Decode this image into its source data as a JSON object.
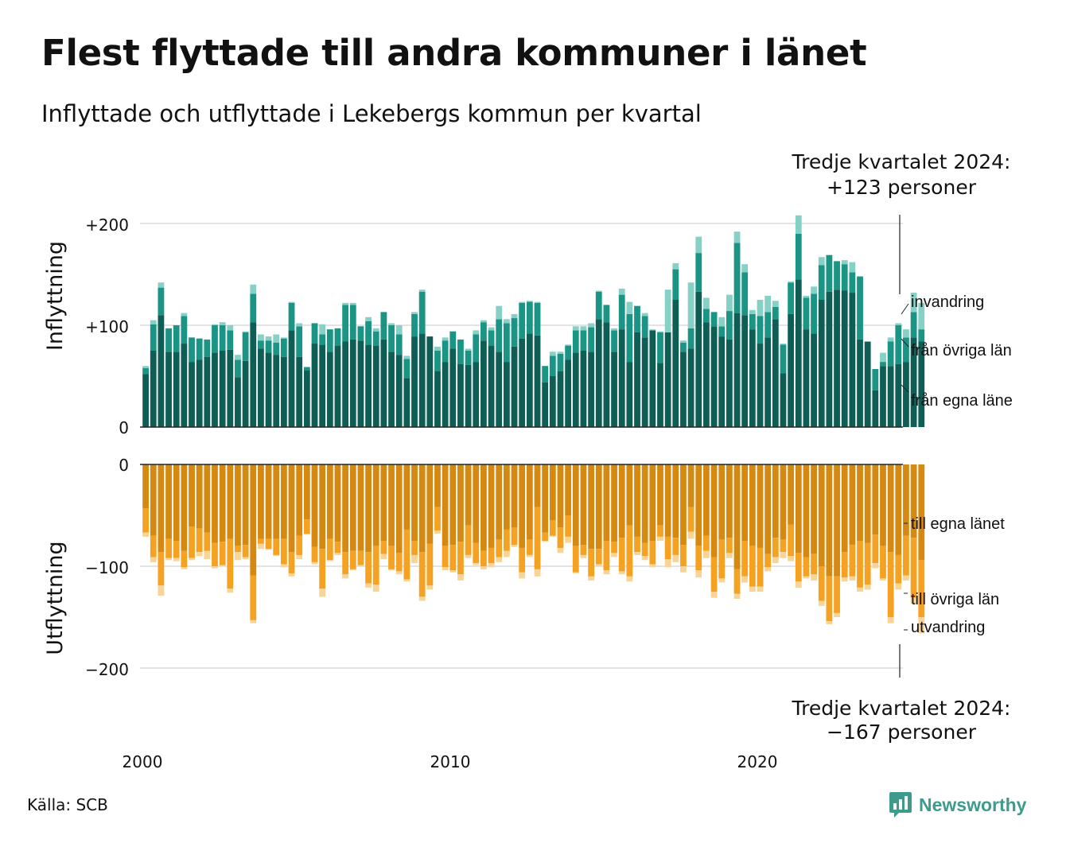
{
  "title": "Flest flyttade till andra kommuner i länet",
  "subtitle": "Inflyttade och utflyttade i Lekebergs kommun per kvartal",
  "source": "Källa: SCB",
  "brand": "Newsworthy",
  "colors": {
    "in_own": "#0f5e55",
    "in_other": "#1a9485",
    "in_immig": "#86d0c6",
    "out_own": "#d68910",
    "out_other": "#f5a121",
    "out_emig": "#f8d497",
    "grid": "#e3e3e3"
  },
  "chart_data": [
    {
      "type": "bar",
      "stacked": true,
      "panel": "top",
      "ylabel": "Inflyttning",
      "ylim": [
        0,
        210
      ],
      "yticks": [
        0,
        100,
        200
      ],
      "ytick_labels": [
        "0",
        "+100",
        "+200"
      ],
      "x_start": "2000 Q1",
      "x_end": "2024 Q3",
      "xticks": [
        "2000",
        "2010",
        "2020"
      ],
      "grid": true,
      "annotation": {
        "line1": "Tredje kvartalet 2024:",
        "line2": "+123 personer"
      },
      "series": [
        {
          "name": "från egna läne",
          "color": "#0f5e55",
          "values": [
            52,
            75,
            110,
            74,
            74,
            82,
            64,
            66,
            69,
            73,
            75,
            76,
            49,
            65,
            103,
            77,
            73,
            71,
            69,
            95,
            69,
            56,
            82,
            81,
            74,
            80,
            84,
            86,
            85,
            81,
            80,
            86,
            74,
            71,
            48,
            89,
            92,
            89,
            55,
            64,
            77,
            62,
            61,
            64,
            85,
            80,
            74,
            64,
            79,
            87,
            92,
            90,
            44,
            50,
            55,
            66,
            73,
            75,
            74,
            106,
            103,
            74,
            96,
            64,
            93,
            88,
            95,
            63,
            93,
            125,
            74,
            77,
            133,
            103,
            99,
            89,
            86,
            112,
            110,
            96,
            82,
            88,
            106,
            53,
            111,
            145,
            96,
            92,
            125,
            133,
            135,
            134,
            132,
            86,
            84,
            36,
            60,
            60,
            62,
            64,
            88,
            84
          ]
        },
        {
          "name": "från övriga län",
          "color": "#1a9485",
          "values": [
            6,
            26,
            27,
            23,
            26,
            27,
            24,
            21,
            17,
            27,
            25,
            19,
            17,
            28,
            28,
            8,
            12,
            12,
            18,
            27,
            30,
            3,
            20,
            10,
            22,
            17,
            36,
            34,
            14,
            23,
            14,
            27,
            26,
            20,
            19,
            22,
            41,
            0,
            20,
            21,
            17,
            24,
            14,
            27,
            18,
            15,
            32,
            38,
            28,
            35,
            31,
            32,
            16,
            20,
            17,
            14,
            22,
            20,
            24,
            27,
            17,
            21,
            34,
            47,
            26,
            21,
            0,
            30,
            0,
            30,
            9,
            20,
            38,
            13,
            14,
            10,
            28,
            69,
            42,
            15,
            27,
            25,
            12,
            28,
            31,
            45,
            31,
            39,
            34,
            36,
            28,
            26,
            20,
            62,
            0,
            21,
            4,
            24,
            38,
            24,
            25,
            12
          ]
        },
        {
          "name": "invandring",
          "color": "#86d0c6",
          "values": [
            2,
            4,
            5,
            0,
            0,
            3,
            0,
            0,
            0,
            1,
            3,
            5,
            5,
            1,
            9,
            6,
            4,
            8,
            1,
            1,
            3,
            0,
            0,
            10,
            0,
            0,
            2,
            2,
            0,
            4,
            3,
            0,
            2,
            9,
            3,
            2,
            2,
            0,
            4,
            3,
            0,
            0,
            2,
            4,
            2,
            3,
            13,
            4,
            4,
            1,
            1,
            1,
            0,
            4,
            2,
            1,
            4,
            4,
            4,
            1,
            0,
            2,
            6,
            12,
            0,
            3,
            1,
            1,
            42,
            6,
            2,
            45,
            16,
            11,
            0,
            9,
            16,
            11,
            8,
            4,
            16,
            16,
            6,
            1,
            1,
            18,
            2,
            7,
            8,
            0,
            0,
            4,
            10,
            0,
            0,
            0,
            9,
            4,
            2,
            8,
            19,
            26
          ]
        }
      ]
    },
    {
      "type": "bar",
      "stacked": true,
      "panel": "bottom",
      "ylabel": "Utflyttning",
      "ylim": [
        -210,
        0
      ],
      "yticks": [
        0,
        -100,
        -200
      ],
      "ytick_labels": [
        "0",
        "−100",
        "−200"
      ],
      "x_start": "2000 Q1",
      "x_end": "2024 Q3",
      "xticks": [
        "2000",
        "2010",
        "2020"
      ],
      "grid": true,
      "annotation": {
        "line1": "Tredje kvartalet 2024:",
        "line2": "−167 personer"
      },
      "series": [
        {
          "name": "till egna länet",
          "color": "#d68910",
          "values": [
            -43,
            -70,
            -86,
            -73,
            -75,
            -85,
            -61,
            -63,
            -67,
            -77,
            -76,
            -73,
            -80,
            -79,
            -109,
            -73,
            -73,
            -73,
            -73,
            -86,
            -70,
            -54,
            -81,
            -83,
            -73,
            -76,
            -86,
            -85,
            -85,
            -86,
            -80,
            -75,
            -80,
            -87,
            -64,
            -75,
            -86,
            -78,
            -42,
            -80,
            -79,
            -76,
            -60,
            -77,
            -85,
            -82,
            -74,
            -64,
            -62,
            -82,
            -74,
            -42,
            -67,
            -55,
            -62,
            -50,
            -80,
            -79,
            -83,
            -83,
            -75,
            -76,
            -72,
            -60,
            -71,
            -77,
            -75,
            -60,
            -71,
            -72,
            -79,
            -42,
            -80,
            -70,
            -91,
            -74,
            -72,
            -103,
            -75,
            -80,
            -82,
            -88,
            -72,
            -74,
            -59,
            -87,
            -91,
            -88,
            -100,
            -110,
            -110,
            -86,
            -79,
            -75,
            -77,
            -69,
            -80,
            -86,
            -89,
            -70,
            -72,
            -94
          ]
        },
        {
          "name": "till övriga län",
          "color": "#f5a121",
          "values": [
            -24,
            -21,
            -33,
            -19,
            -17,
            -16,
            -31,
            -23,
            -18,
            -23,
            -23,
            -49,
            -6,
            -12,
            -44,
            -5,
            -10,
            -16,
            -25,
            -21,
            -19,
            -14,
            -15,
            -39,
            -21,
            -11,
            -22,
            -18,
            -14,
            -31,
            -38,
            -13,
            -23,
            -18,
            -49,
            -14,
            -44,
            -41,
            -23,
            -21,
            -25,
            -32,
            -29,
            -20,
            -15,
            -15,
            -17,
            -21,
            -17,
            -24,
            -15,
            -61,
            -8,
            -15,
            -20,
            -21,
            -26,
            -10,
            -27,
            -15,
            -29,
            -11,
            -33,
            -50,
            -15,
            -13,
            -23,
            -11,
            -22,
            -17,
            -21,
            -24,
            -24,
            -15,
            -34,
            -38,
            -15,
            -24,
            -35,
            -40,
            -38,
            -13,
            -19,
            -12,
            -31,
            -28,
            -19,
            -20,
            -34,
            -44,
            -36,
            -25,
            -31,
            -46,
            -41,
            -28,
            -32,
            -64,
            -28,
            -39,
            -59,
            -56
          ]
        },
        {
          "name": "utvandring",
          "color": "#f8d497",
          "values": [
            -4,
            -5,
            -10,
            -2,
            -3,
            -2,
            -2,
            -4,
            -8,
            -2,
            -1,
            -4,
            -8,
            -2,
            -3,
            -5,
            -1,
            -1,
            -3,
            -3,
            -4,
            -1,
            -2,
            -8,
            -1,
            -2,
            -4,
            -1,
            -1,
            -4,
            -7,
            -5,
            -1,
            -3,
            -2,
            -8,
            -4,
            -4,
            -3,
            -3,
            -2,
            -6,
            -3,
            -2,
            -3,
            -4,
            -5,
            -6,
            -2,
            -6,
            -2,
            -7,
            -1,
            -1,
            -5,
            -6,
            -1,
            -3,
            -4,
            -2,
            -4,
            -4,
            -3,
            -5,
            -3,
            -4,
            -3,
            -4,
            -8,
            -7,
            -6,
            -7,
            -7,
            -7,
            -6,
            -4,
            -5,
            -5,
            -6,
            -5,
            -5,
            -4,
            -6,
            -6,
            -5,
            -6,
            -2,
            -6,
            -5,
            -3,
            -4,
            -4,
            -4,
            -4,
            -5,
            -5,
            -2,
            -6,
            -6,
            -5,
            -6,
            -16
          ]
        }
      ]
    }
  ],
  "legend": {
    "top": [
      "invandring",
      "från övriga län",
      "från egna läne"
    ],
    "bottom": [
      "till egna länet",
      "till övriga län",
      "utvandring"
    ]
  }
}
